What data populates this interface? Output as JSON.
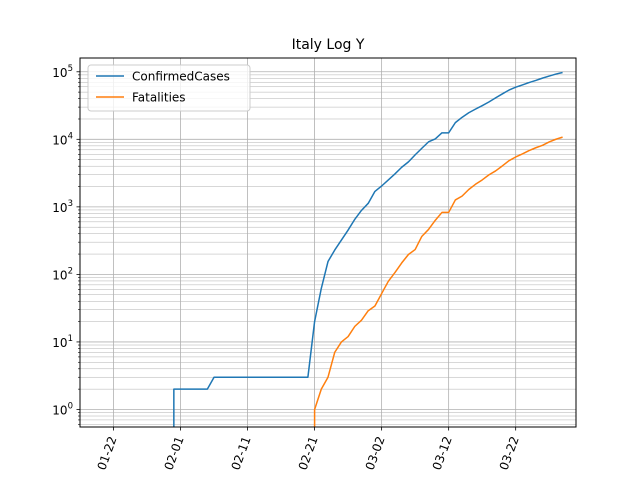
{
  "chart_data": {
    "type": "line",
    "title": "Italy Log Y",
    "xlabel": "",
    "ylabel": "",
    "x_type": "date",
    "xlim": [
      "2020-01-17",
      "2020-03-31"
    ],
    "ylim": [
      0.55,
      160000
    ],
    "yscale": "log",
    "grid": "both-major-and-minor",
    "legend_position": "top-left",
    "x_ticks": [
      "2020-01-22",
      "2020-02-01",
      "2020-02-11",
      "2020-02-21",
      "2020-03-02",
      "2020-03-12",
      "2020-03-22"
    ],
    "x_tick_labels": [
      "01-22",
      "02-01",
      "02-11",
      "02-21",
      "03-02",
      "03-12",
      "03-22"
    ],
    "y_ticks": [
      1,
      10,
      100,
      1000,
      10000,
      100000
    ],
    "y_tick_labels": [
      {
        "base": "10",
        "exp": "0"
      },
      {
        "base": "10",
        "exp": "1"
      },
      {
        "base": "10",
        "exp": "2"
      },
      {
        "base": "10",
        "exp": "3"
      },
      {
        "base": "10",
        "exp": "4"
      },
      {
        "base": "10",
        "exp": "5"
      }
    ],
    "series": [
      {
        "name": "ConfirmedCases",
        "color": "#1f77b4",
        "x": [
          "2020-01-31",
          "2020-02-01",
          "2020-02-02",
          "2020-02-03",
          "2020-02-04",
          "2020-02-05",
          "2020-02-06",
          "2020-02-07",
          "2020-02-08",
          "2020-02-09",
          "2020-02-10",
          "2020-02-11",
          "2020-02-12",
          "2020-02-13",
          "2020-02-14",
          "2020-02-15",
          "2020-02-16",
          "2020-02-17",
          "2020-02-18",
          "2020-02-19",
          "2020-02-20",
          "2020-02-21",
          "2020-02-22",
          "2020-02-23",
          "2020-02-24",
          "2020-02-25",
          "2020-02-26",
          "2020-02-27",
          "2020-02-28",
          "2020-02-29",
          "2020-03-01",
          "2020-03-02",
          "2020-03-03",
          "2020-03-04",
          "2020-03-05",
          "2020-03-06",
          "2020-03-07",
          "2020-03-08",
          "2020-03-09",
          "2020-03-10",
          "2020-03-11",
          "2020-03-12",
          "2020-03-13",
          "2020-03-14",
          "2020-03-15",
          "2020-03-16",
          "2020-03-17",
          "2020-03-18",
          "2020-03-19",
          "2020-03-20",
          "2020-03-21",
          "2020-03-22",
          "2020-03-23",
          "2020-03-24",
          "2020-03-25",
          "2020-03-26",
          "2020-03-27",
          "2020-03-28",
          "2020-03-29"
        ],
        "y": [
          2,
          2,
          2,
          2,
          2,
          2,
          3,
          3,
          3,
          3,
          3,
          3,
          3,
          3,
          3,
          3,
          3,
          3,
          3,
          3,
          3,
          20,
          62,
          155,
          229,
          322,
          453,
          655,
          888,
          1128,
          1694,
          2036,
          2502,
          3089,
          3858,
          4636,
          5883,
          7375,
          9172,
          10149,
          12462,
          12462,
          17660,
          21157,
          24747,
          27980,
          31506,
          35713,
          41035,
          47021,
          53578,
          59138,
          63927,
          69176,
          74386,
          80589,
          86498,
          92472,
          97689
        ]
      },
      {
        "name": "Fatalities",
        "color": "#ff7f0e",
        "x": [
          "2020-02-21",
          "2020-02-22",
          "2020-02-23",
          "2020-02-24",
          "2020-02-25",
          "2020-02-26",
          "2020-02-27",
          "2020-02-28",
          "2020-02-29",
          "2020-03-01",
          "2020-03-02",
          "2020-03-03",
          "2020-03-04",
          "2020-03-05",
          "2020-03-06",
          "2020-03-07",
          "2020-03-08",
          "2020-03-09",
          "2020-03-10",
          "2020-03-11",
          "2020-03-12",
          "2020-03-13",
          "2020-03-14",
          "2020-03-15",
          "2020-03-16",
          "2020-03-17",
          "2020-03-18",
          "2020-03-19",
          "2020-03-20",
          "2020-03-21",
          "2020-03-22",
          "2020-03-23",
          "2020-03-24",
          "2020-03-25",
          "2020-03-26",
          "2020-03-27",
          "2020-03-28",
          "2020-03-29"
        ],
        "y": [
          1,
          2,
          3,
          7,
          10,
          12,
          17,
          21,
          29,
          34,
          52,
          79,
          107,
          148,
          197,
          233,
          366,
          463,
          631,
          827,
          827,
          1266,
          1441,
          1809,
          2158,
          2503,
          2978,
          3405,
          4032,
          4825,
          5476,
          6077,
          6820,
          7503,
          8165,
          9134,
          10023,
          10779
        ]
      }
    ]
  }
}
